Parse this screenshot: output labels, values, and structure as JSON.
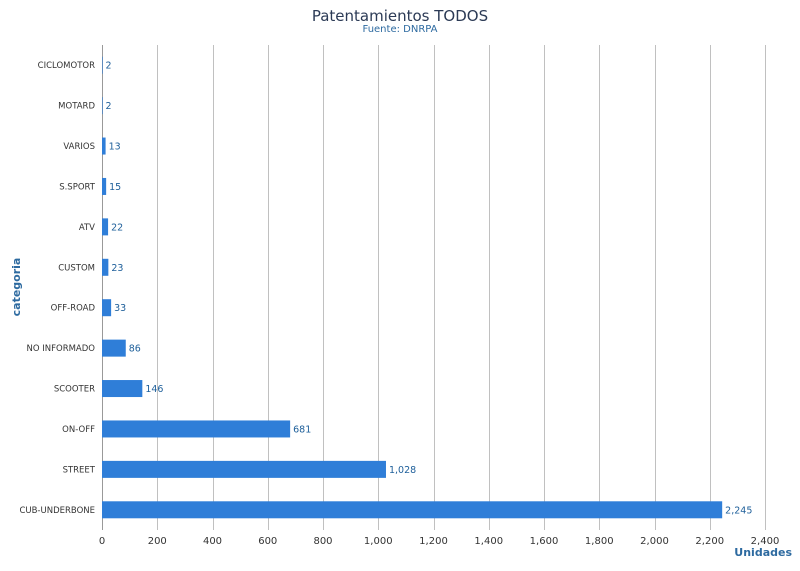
{
  "chart_data": {
    "type": "bar",
    "orientation": "horizontal",
    "title": "Patentamientos TODOS",
    "subtitle": "Fuente: DNRPA",
    "xlabel": "Unidades",
    "ylabel": "categoria",
    "categories": [
      "CICLOMOTOR",
      "MOTARD",
      "VARIOS",
      "S.SPORT",
      "ATV",
      "CUSTOM",
      "OFF-ROAD",
      "NO INFORMADO",
      "SCOOTER",
      "ON-OFF",
      "STREET",
      "CUB-UNDERBONE"
    ],
    "values": [
      2,
      2,
      13,
      15,
      22,
      23,
      33,
      86,
      146,
      681,
      1028,
      2245
    ],
    "value_labels": [
      "2",
      "2",
      "13",
      "15",
      "22",
      "23",
      "33",
      "86",
      "146",
      "681",
      "1,028",
      "2,245"
    ],
    "xlim": [
      0,
      2400
    ],
    "xticks": [
      0,
      200,
      400,
      600,
      800,
      1000,
      1200,
      1400,
      1600,
      1800,
      2000,
      2200,
      2400
    ],
    "xtick_labels": [
      "0",
      "200",
      "400",
      "600",
      "800",
      "1,000",
      "1,200",
      "1,400",
      "1,600",
      "1,800",
      "2,000",
      "2,200",
      "2,400"
    ],
    "grid": true,
    "legend": "none",
    "colors": {
      "bar": "#2f7ed8",
      "grid": "#c0c0c0",
      "data_label": "#1e5f9a",
      "axis_title": "#2d6aa0"
    }
  }
}
